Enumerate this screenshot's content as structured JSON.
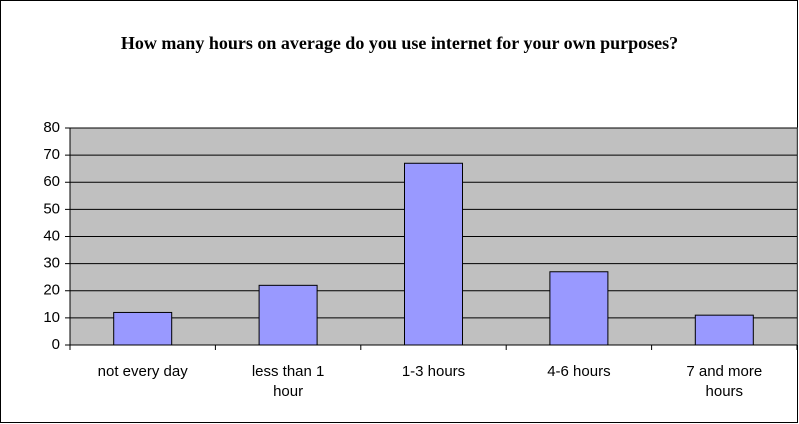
{
  "chart_data": {
    "type": "bar",
    "title": "How many hours on average do you use internet for your own purposes?",
    "categories": [
      "not every day",
      "less than 1 hour",
      "1-3 hours",
      "4-6 hours",
      "7 and more hours"
    ],
    "values": [
      12,
      22,
      67,
      27,
      11
    ],
    "color": "#9999ff",
    "ylim": [
      0,
      80
    ],
    "yticks": [
      0,
      10,
      20,
      30,
      40,
      50,
      60,
      70,
      80
    ],
    "grid": true
  }
}
